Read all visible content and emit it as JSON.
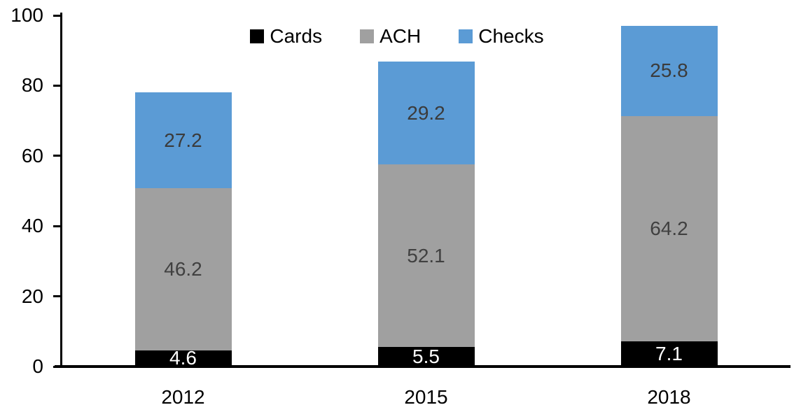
{
  "chart_data": {
    "type": "bar",
    "stacked": true,
    "title": "",
    "xlabel": "",
    "ylabel": "",
    "categories": [
      "2012",
      "2015",
      "2018"
    ],
    "series": [
      {
        "name": "Cards",
        "color": "#000000",
        "label_color": "#FFFFFF",
        "values": [
          4.6,
          5.5,
          7.1
        ]
      },
      {
        "name": "ACH",
        "color": "#A0A0A0",
        "label_color": "#404040",
        "values": [
          46.2,
          52.1,
          64.2
        ]
      },
      {
        "name": "Checks",
        "color": "#5B9BD5",
        "label_color": "#3B3B3B",
        "values": [
          27.2,
          29.2,
          25.8
        ]
      }
    ],
    "y_ticks": [
      0,
      20,
      40,
      60,
      80,
      100
    ],
    "ylim": [
      0,
      100
    ],
    "legend_position": "top",
    "grid": false,
    "axis_color": "#000000",
    "label_decimals": 1
  }
}
